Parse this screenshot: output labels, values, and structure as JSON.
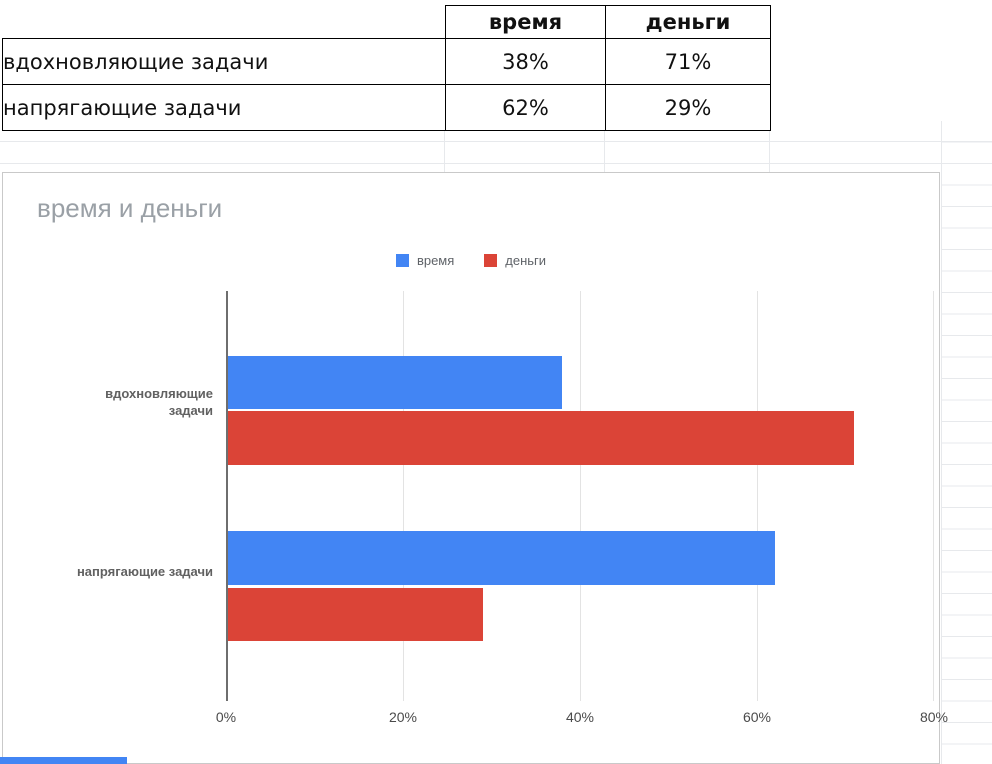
{
  "table": {
    "header": {
      "col1": "время",
      "col2": "деньги"
    },
    "rows": [
      {
        "label": "вдохновляющие задачи",
        "time": "38%",
        "money": "71%"
      },
      {
        "label": "напрягающие задачи",
        "time": "62%",
        "money": "29%"
      }
    ]
  },
  "chart_data": {
    "type": "bar",
    "orientation": "horizontal",
    "title": "время и деньги",
    "categories": [
      "вдохновляющие задачи",
      "напрягающие задачи"
    ],
    "series": [
      {
        "name": "время",
        "color": "#4285f4",
        "values": [
          38,
          62
        ]
      },
      {
        "name": "деньги",
        "color": "#db4437",
        "values": [
          71,
          29
        ]
      }
    ],
    "value_unit": "%",
    "xlim": [
      0,
      80
    ],
    "x_ticks": [
      "0%",
      "20%",
      "40%",
      "60%",
      "80%"
    ],
    "legend_position": "top",
    "grid": true
  },
  "colors": {
    "bottom_strip": "#4285f4",
    "gridline": "#e3e3e3",
    "axis": "#6e6e6e"
  }
}
